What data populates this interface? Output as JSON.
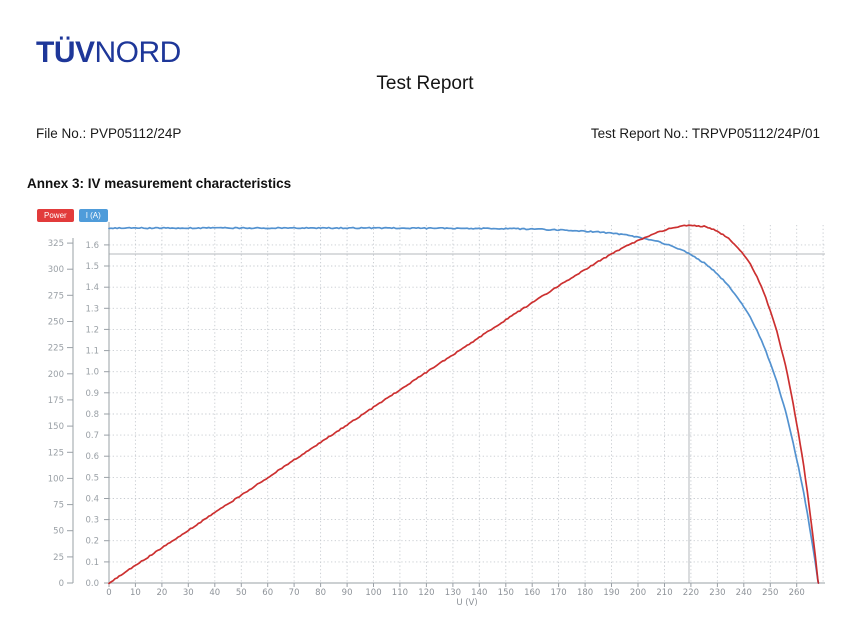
{
  "header": {
    "logo_bold": "TÜV",
    "logo_regular": "NORD",
    "logo_color": "#1e3799",
    "title": "Test Report",
    "file_no": "File No.: PVP05112/24P",
    "report_no": "Test Report No.: TRPVP05112/24P/01"
  },
  "annex_heading": "Annex 3: IV measurement characteristics",
  "chart_data": {
    "type": "line",
    "title": "",
    "xlabel": "U (V)",
    "legend": [
      {
        "label": "Power",
        "color": "#e23b3b"
      },
      {
        "label": "I (A)",
        "color": "#4f9cda"
      }
    ],
    "legend_position": "top-left",
    "grid": "dashed",
    "x_ticks": [
      0,
      10,
      20,
      30,
      40,
      50,
      60,
      70,
      80,
      90,
      100,
      110,
      120,
      130,
      140,
      150,
      160,
      170,
      180,
      190,
      200,
      210,
      220,
      230,
      240,
      250,
      260
    ],
    "x_grid_max": 270,
    "xlim": [
      0,
      272
    ],
    "power_axis": {
      "name": "Power",
      "ticks": [
        0,
        25,
        50,
        75,
        100,
        125,
        150,
        175,
        200,
        225,
        250,
        275,
        300,
        325
      ],
      "lim": [
        0,
        342
      ]
    },
    "current_axis": {
      "name": "I (A)",
      "ticks": [
        "0.0",
        "0.1",
        "0.2",
        "0.3",
        "0.4",
        "0.5",
        "0.6",
        "0.7",
        "0.8",
        "0.9",
        "1.0",
        "1.1",
        "1.2",
        "1.3",
        "1.4",
        "1.5",
        "1.6"
      ],
      "lim": [
        0,
        1.69
      ]
    },
    "mpp_marker": {
      "v": 219.3,
      "i": 1.557
    },
    "key_values": {
      "Isc_A": 1.68,
      "Voc_V": 268.2,
      "Vmpp_V": 219.3,
      "Impp_A": 1.56,
      "Pmax_W": 342
    },
    "x": [
      0,
      20,
      40,
      60,
      80,
      100,
      110,
      120,
      130,
      140,
      150,
      160,
      170,
      180,
      185,
      190,
      195,
      200,
      202.5,
      205,
      207.5,
      210,
      212.5,
      215,
      217.5,
      220,
      225,
      230,
      235,
      240,
      242.5,
      245,
      247.5,
      250,
      252.5,
      255,
      256.5,
      258,
      260,
      262,
      264,
      265,
      266,
      267,
      268,
      268.2
    ],
    "series": [
      {
        "name": "I (A)",
        "axis": "current",
        "color": "#4a8ccd",
        "values": [
          1.68,
          1.68,
          1.68,
          1.68,
          1.68,
          1.68,
          1.68,
          1.679,
          1.679,
          1.678,
          1.677,
          1.675,
          1.671,
          1.665,
          1.661,
          1.655,
          1.647,
          1.637,
          1.631,
          1.623,
          1.616,
          1.606,
          1.596,
          1.583,
          1.57,
          1.554,
          1.515,
          1.464,
          1.395,
          1.308,
          1.256,
          1.196,
          1.125,
          1.042,
          0.954,
          0.845,
          0.779,
          0.7,
          0.586,
          0.469,
          0.331,
          0.257,
          0.178,
          0.098,
          0.008,
          0.0
        ]
      },
      {
        "name": "Power",
        "axis": "power",
        "color": "#c92525",
        "values": [
          0,
          33.6,
          67.2,
          100.8,
          134.4,
          168.0,
          184.8,
          201.5,
          218.2,
          234.9,
          251.5,
          268.0,
          284.1,
          299.7,
          307.3,
          314.5,
          321.2,
          327.4,
          330.2,
          332.7,
          335.2,
          337.3,
          339.1,
          340.4,
          341.5,
          341.9,
          340.9,
          336.7,
          327.8,
          313.9,
          304.6,
          293.0,
          278.4,
          260.5,
          240.9,
          215.5,
          199.8,
          180.6,
          152.4,
          122.9,
          87.4,
          68.1,
          47.3,
          26.2,
          2.1,
          0.0
        ]
      }
    ]
  }
}
